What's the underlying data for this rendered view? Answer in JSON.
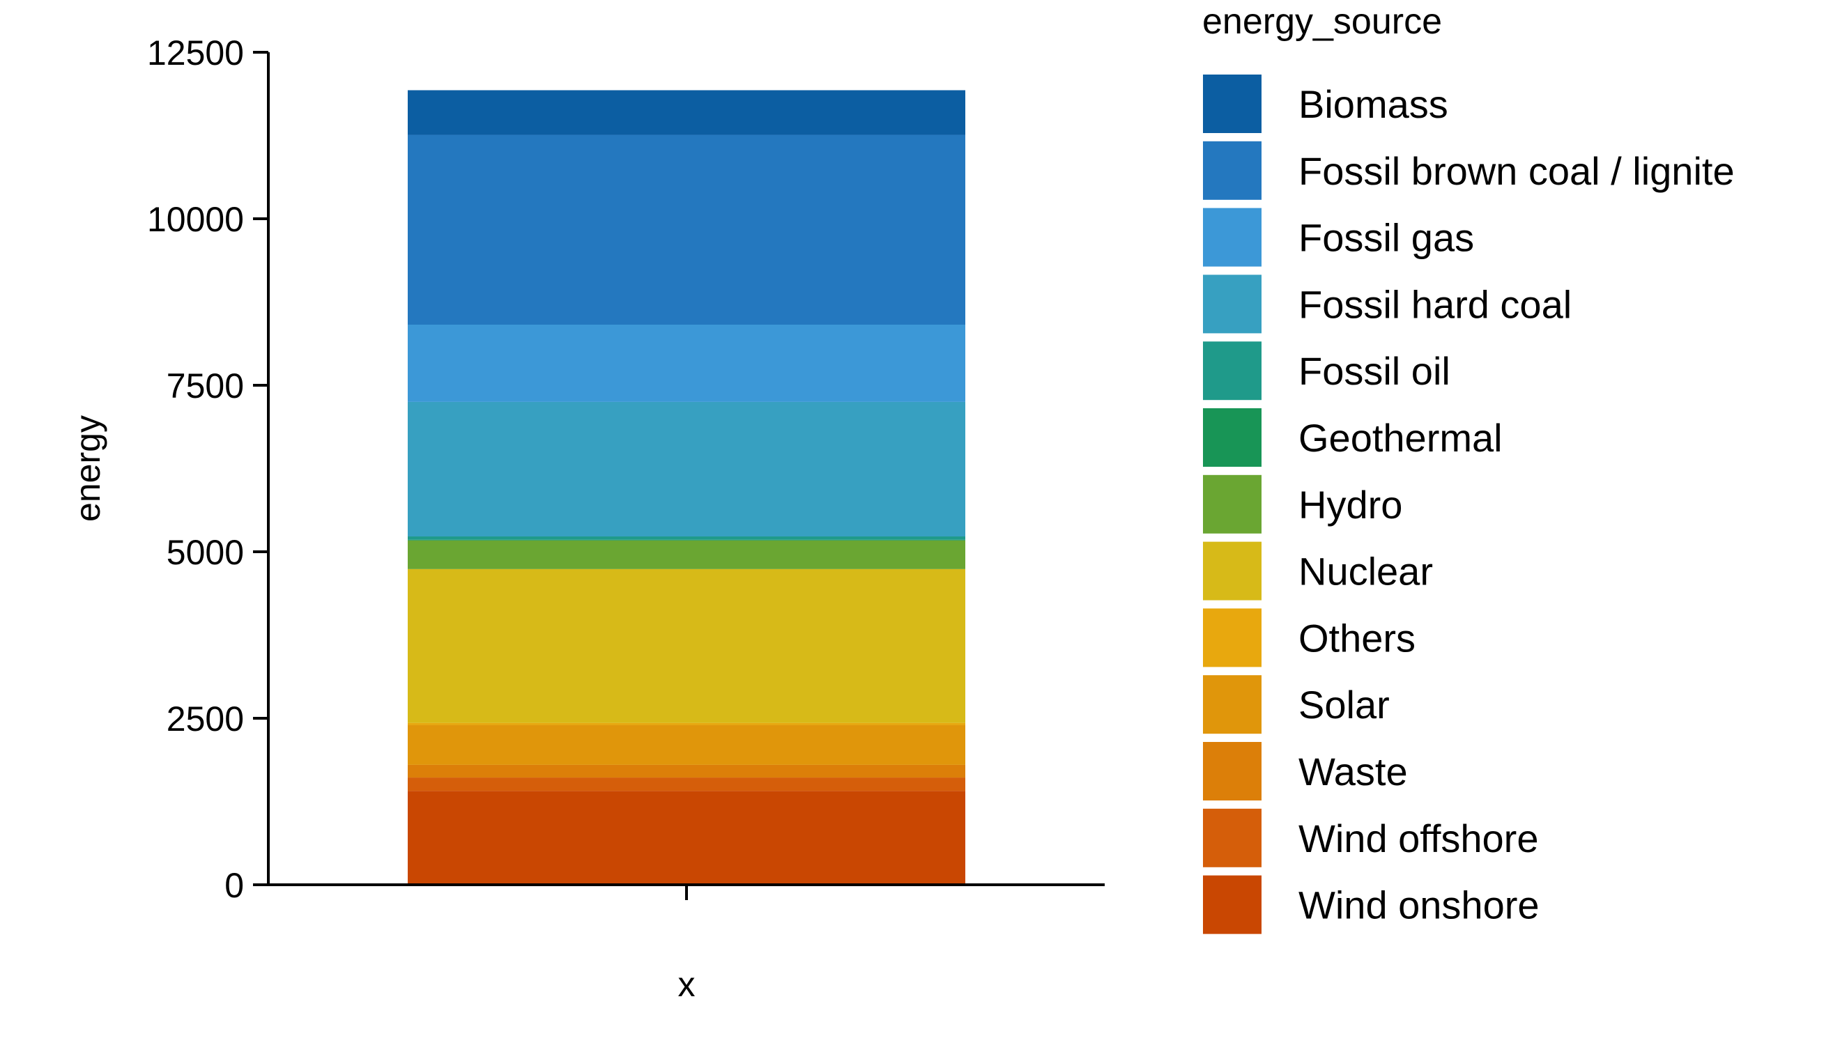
{
  "chart_data": {
    "type": "bar",
    "stacked": true,
    "categories": [
      ""
    ],
    "xlabel": "x",
    "ylabel": "energy",
    "ylim": [
      0,
      12500
    ],
    "yticks": [
      0,
      2500,
      5000,
      7500,
      10000,
      12500
    ],
    "ytick_labels": [
      "0",
      "2500",
      "5000",
      "7500",
      "10000",
      "12500"
    ],
    "grid": false,
    "legend": {
      "title": "energy_source",
      "position": "right"
    },
    "series": [
      {
        "name": "Wind onshore",
        "values": [
          1410
        ],
        "color": "#c94702"
      },
      {
        "name": "Wind offshore",
        "values": [
          200
        ],
        "color": "#d55e0a"
      },
      {
        "name": "Waste",
        "values": [
          190
        ],
        "color": "#dc7f09"
      },
      {
        "name": "Solar",
        "values": [
          600
        ],
        "color": "#e0960b"
      },
      {
        "name": "Others",
        "values": [
          30
        ],
        "color": "#e8a80e"
      },
      {
        "name": "Nuclear",
        "values": [
          2310
        ],
        "color": "#d7ba18"
      },
      {
        "name": "Hydro",
        "values": [
          430
        ],
        "color": "#6aa632"
      },
      {
        "name": "Geothermal",
        "values": [
          10
        ],
        "color": "#189556"
      },
      {
        "name": "Fossil oil",
        "values": [
          50
        ],
        "color": "#1f9a8a"
      },
      {
        "name": "Fossil hard coal",
        "values": [
          2020
        ],
        "color": "#37a0c1"
      },
      {
        "name": "Fossil gas",
        "values": [
          1160
        ],
        "color": "#3c98d7"
      },
      {
        "name": "Fossil brown coal / lignite",
        "values": [
          2850
        ],
        "color": "#2478bf"
      },
      {
        "name": "Biomass",
        "values": [
          670
        ],
        "color": "#0c5ea2"
      }
    ]
  }
}
